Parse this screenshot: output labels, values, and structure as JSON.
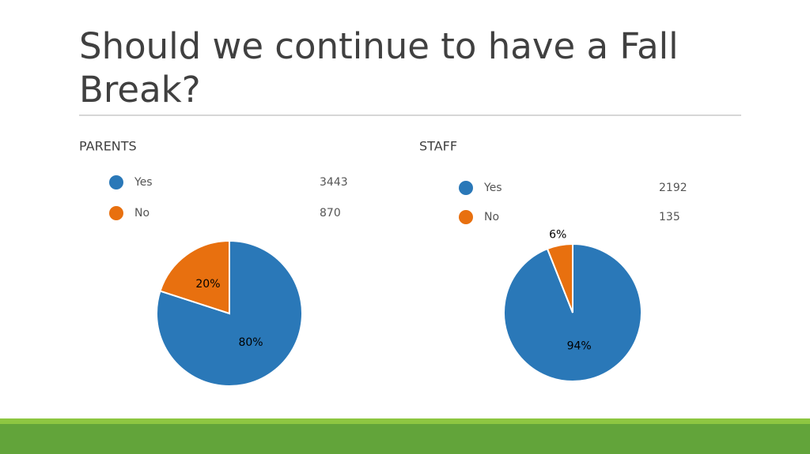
{
  "title": "Should we continue to have a Fall Break?",
  "chart_data": [
    {
      "type": "pie",
      "title": "PARENTS",
      "categories": [
        "Yes",
        "No"
      ],
      "counts": [
        3443,
        870
      ],
      "values": [
        80,
        20
      ],
      "value_labels": [
        "80%",
        "20%"
      ],
      "colors": [
        "#2a78b8",
        "#e8700f"
      ]
    },
    {
      "type": "pie",
      "title": "STAFF",
      "categories": [
        "Yes",
        "No"
      ],
      "counts": [
        2192,
        135
      ],
      "values": [
        94,
        6
      ],
      "value_labels": [
        "94%",
        "6%"
      ],
      "colors": [
        "#2a78b8",
        "#e8700f"
      ]
    }
  ]
}
